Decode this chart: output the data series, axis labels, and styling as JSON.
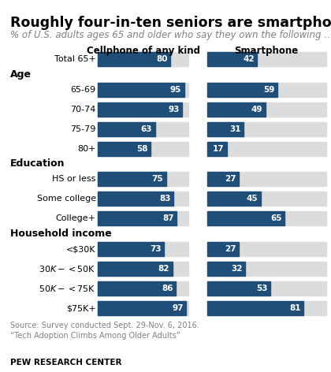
{
  "title": "Roughly four-in-ten seniors are smartphone owners",
  "subtitle": "% of U.S. adults ages 65 and older who say they own the following ...",
  "col1_header": "Cellphone of any kind",
  "col2_header": "Smartphone",
  "rows": [
    {
      "label": "Total 65+",
      "cp": 80,
      "sp": 42,
      "type": "data",
      "indent": false
    },
    {
      "label": "Age",
      "cp": null,
      "sp": null,
      "type": "header",
      "indent": false
    },
    {
      "label": "65-69",
      "cp": 95,
      "sp": 59,
      "type": "data",
      "indent": true
    },
    {
      "label": "70-74",
      "cp": 93,
      "sp": 49,
      "type": "data",
      "indent": true
    },
    {
      "label": "75-79",
      "cp": 63,
      "sp": 31,
      "type": "data",
      "indent": true
    },
    {
      "label": "80+",
      "cp": 58,
      "sp": 17,
      "type": "data",
      "indent": true
    },
    {
      "label": "Education",
      "cp": null,
      "sp": null,
      "type": "header",
      "indent": false
    },
    {
      "label": "HS or less",
      "cp": 75,
      "sp": 27,
      "type": "data",
      "indent": true
    },
    {
      "label": "Some college",
      "cp": 83,
      "sp": 45,
      "type": "data",
      "indent": true
    },
    {
      "label": "College+",
      "cp": 87,
      "sp": 65,
      "type": "data",
      "indent": true
    },
    {
      "label": "Household income",
      "cp": null,
      "sp": null,
      "type": "header",
      "indent": false
    },
    {
      "label": "<$30K",
      "cp": 73,
      "sp": 27,
      "type": "data",
      "indent": true
    },
    {
      "label": "$30K-<$50K",
      "cp": 82,
      "sp": 32,
      "type": "data",
      "indent": true
    },
    {
      "label": "$50K-<$75K",
      "cp": 86,
      "sp": 53,
      "type": "data",
      "indent": true
    },
    {
      "label": "$75K+",
      "cp": 97,
      "sp": 81,
      "type": "data",
      "indent": true
    }
  ],
  "bar_color": "#1f4e79",
  "bg_bar_color": "#dcdcdc",
  "source_text": "Source: Survey conducted Sept. 29-Nov. 6, 2016.\n“Tech Adoption Climbs Among Older Adults”",
  "footer": "PEW RESEARCH CENTER",
  "title_fontsize": 12.5,
  "subtitle_fontsize": 8.5,
  "header_fontsize": 9,
  "col_header_fontsize": 8.5,
  "label_fontsize": 8,
  "value_fontsize": 7.5,
  "source_fontsize": 7,
  "footer_fontsize": 7.5
}
